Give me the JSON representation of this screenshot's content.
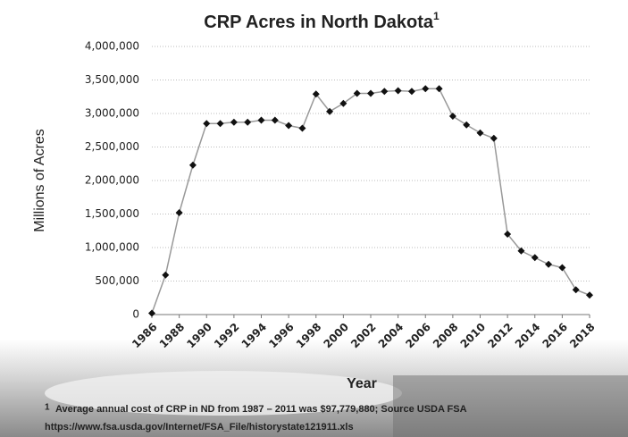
{
  "chart_data": {
    "type": "line",
    "title": "CRP Acres in North Dakota",
    "title_note": "1",
    "y_label": "Millions of Acres",
    "x_label": "Year",
    "footnote_mark": "1",
    "footnote": "Average annual cost of CRP in ND from 1987 – 2011 was $97,779,880; Source USDA FSA",
    "source_url": "https://www.fsa.usda.gov/Internet/FSA_File/historystate121911.xls",
    "x": [
      1986,
      1987,
      1988,
      1989,
      1990,
      1991,
      1992,
      1993,
      1994,
      1995,
      1996,
      1997,
      1998,
      1999,
      2000,
      2001,
      2002,
      2003,
      2004,
      2005,
      2006,
      2007,
      2008,
      2009,
      2010,
      2011,
      2012,
      2013,
      2014,
      2015,
      2016,
      2017,
      2018
    ],
    "series": [
      {
        "name": "CRP Acres",
        "color": "#999999",
        "values": [
          20000,
          590000,
          1520000,
          2230000,
          2850000,
          2850000,
          2870000,
          2870000,
          2900000,
          2900000,
          2820000,
          2780000,
          3290000,
          3030000,
          3150000,
          3300000,
          3300000,
          3330000,
          3340000,
          3330000,
          3370000,
          3370000,
          2960000,
          2830000,
          2710000,
          2630000,
          1200000,
          950000,
          850000,
          750000,
          700000,
          370000,
          290000
        ]
      }
    ],
    "xlim": [
      1986,
      2018
    ],
    "xticks": [
      1986,
      1988,
      1990,
      1992,
      1994,
      1996,
      1998,
      2000,
      2002,
      2004,
      2006,
      2008,
      2010,
      2012,
      2014,
      2016,
      2018
    ],
    "ylim": [
      0,
      4000000
    ],
    "yticks": [
      0,
      {
        "value": 500000,
        "label": "500,000"
      },
      {
        "value": 1000000,
        "label": "1,000,000"
      },
      {
        "value": 1500000,
        "label": "1,500,000"
      },
      {
        "value": 2000000,
        "label": "2,000,000"
      },
      {
        "value": 2500000,
        "label": "2,500,000"
      },
      {
        "value": 3000000,
        "label": "3,000,000"
      },
      {
        "value": 3500000,
        "label": "3,500,000"
      },
      {
        "value": 4000000,
        "label": "4,000,000"
      }
    ],
    "grid": true,
    "marker_color": "#111111"
  }
}
